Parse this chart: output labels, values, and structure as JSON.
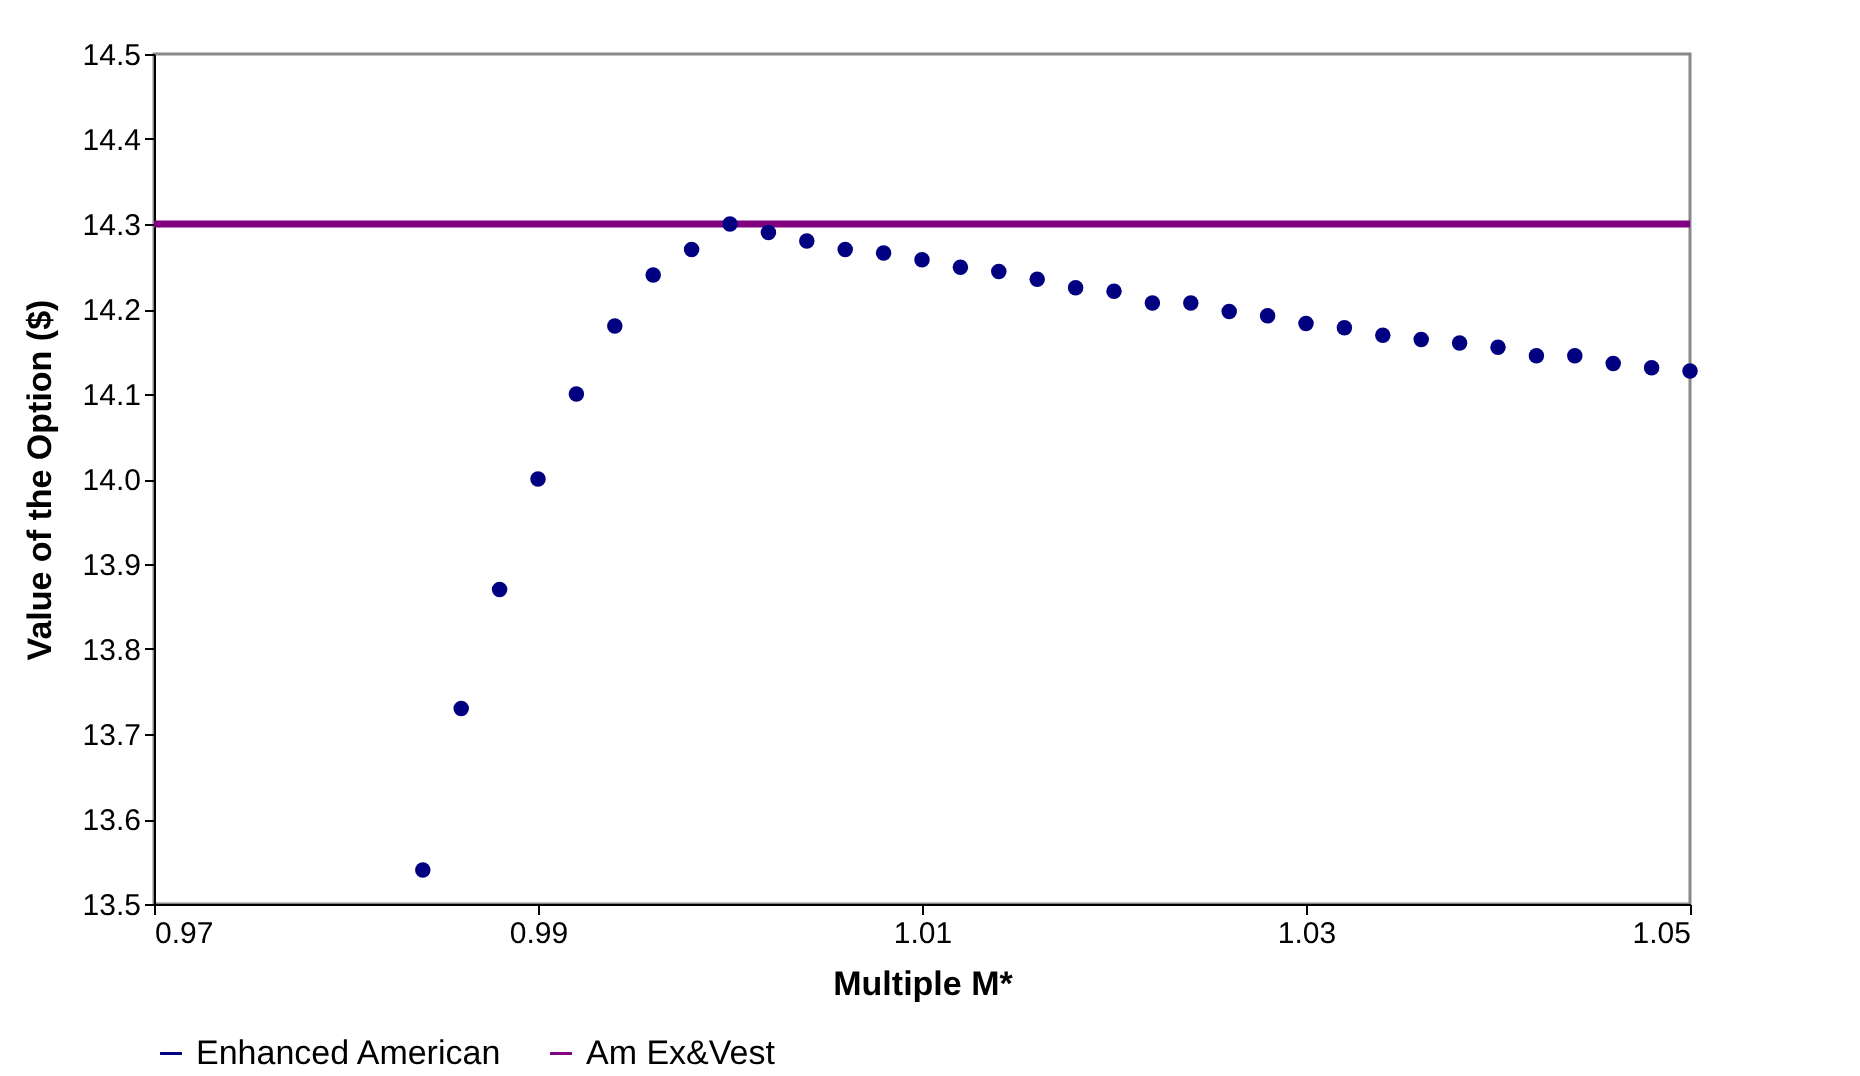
{
  "chart_data": {
    "type": "scatter",
    "xlabel": "Multiple M*",
    "ylabel": "Value of the Option ($)",
    "xlim": [
      0.97,
      1.05
    ],
    "xticks": [
      0.97,
      0.99,
      1.01,
      1.03,
      1.05
    ],
    "ylim": [
      13.5,
      14.5
    ],
    "yticks": [
      13.5,
      13.6,
      13.7,
      13.8,
      13.9,
      {
        "value": 14,
        "label": "14.0"
      },
      14.1,
      14.2,
      14.3,
      14.4,
      14.5
    ],
    "grid": false,
    "legend": "bottom",
    "series": [
      {
        "name": "Enhanced American",
        "marker": "circle",
        "color": "#000080",
        "x": [
          0.984,
          0.986,
          0.988,
          0.99,
          0.992,
          0.994,
          0.996,
          0.998,
          1.0,
          1.002,
          1.004,
          1.006,
          1.008,
          1.01,
          1.012,
          1.014,
          1.016,
          1.018,
          1.02,
          1.022,
          1.024,
          1.026,
          1.028,
          1.03,
          1.032,
          1.034,
          1.036,
          1.038,
          1.04,
          1.042,
          1.044,
          1.046,
          1.048,
          1.05
        ],
        "values": [
          13.54,
          13.73,
          13.87,
          14.0,
          14.1,
          14.18,
          14.24,
          14.27,
          14.3,
          14.29,
          14.28,
          14.27,
          14.266,
          14.258,
          14.249,
          14.244,
          14.235,
          14.225,
          14.221,
          14.207,
          14.207,
          14.197,
          14.192,
          14.183,
          14.178,
          14.169,
          14.164,
          14.16,
          14.155,
          14.145,
          14.145,
          14.136,
          14.131,
          14.127
        ]
      },
      {
        "name": "Am Ex&Vest",
        "type": "line",
        "color": "#800080",
        "line_style": "solid",
        "x": [
          0.97,
          1.05
        ],
        "values": [
          14.3,
          14.3
        ]
      }
    ]
  }
}
